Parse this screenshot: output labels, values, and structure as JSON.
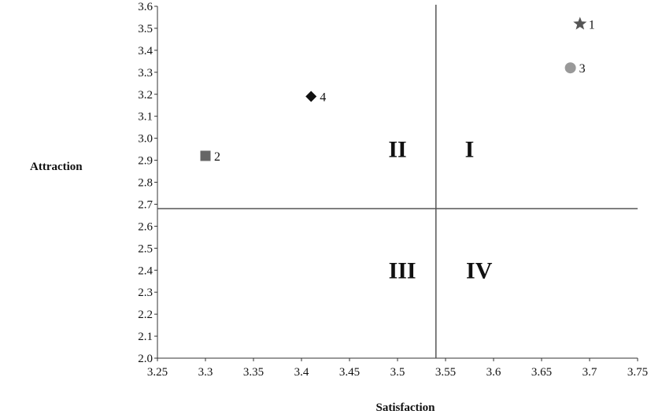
{
  "chart_data": {
    "type": "scatter",
    "xlabel": "Satisfaction",
    "ylabel": "Attraction",
    "xlim": [
      3.25,
      3.75
    ],
    "ylim": [
      2.0,
      3.6
    ],
    "x_ticks": [
      "3.25",
      "3.3",
      "3.35",
      "3.4",
      "3.45",
      "3.5",
      "3.55",
      "3.6",
      "3.65",
      "3.7",
      "3.75"
    ],
    "y_ticks": [
      "2.0",
      "2.1",
      "2.2",
      "2.3",
      "2.4",
      "2.5",
      "2.6",
      "2.7",
      "2.8",
      "2.9",
      "3.0",
      "3.1",
      "3.2",
      "3.3",
      "3.4",
      "3.5",
      "3.6"
    ],
    "grid": false,
    "divider_x": 3.54,
    "divider_y": 2.68,
    "quadrants": [
      {
        "label": "I",
        "x": 3.575,
        "y": 2.95
      },
      {
        "label": "II",
        "x": 3.5,
        "y": 2.95
      },
      {
        "label": "III",
        "x": 3.505,
        "y": 2.4
      },
      {
        "label": "IV",
        "x": 3.585,
        "y": 2.4
      }
    ],
    "points": [
      {
        "label": "1",
        "x": 3.69,
        "y": 3.52,
        "marker": "star",
        "color": "#555555"
      },
      {
        "label": "2",
        "x": 3.3,
        "y": 2.92,
        "marker": "square",
        "color": "#666666"
      },
      {
        "label": "3",
        "x": 3.68,
        "y": 3.32,
        "marker": "circle",
        "color": "#999999"
      },
      {
        "label": "4",
        "x": 3.41,
        "y": 3.19,
        "marker": "diamond",
        "color": "#111111"
      }
    ]
  }
}
